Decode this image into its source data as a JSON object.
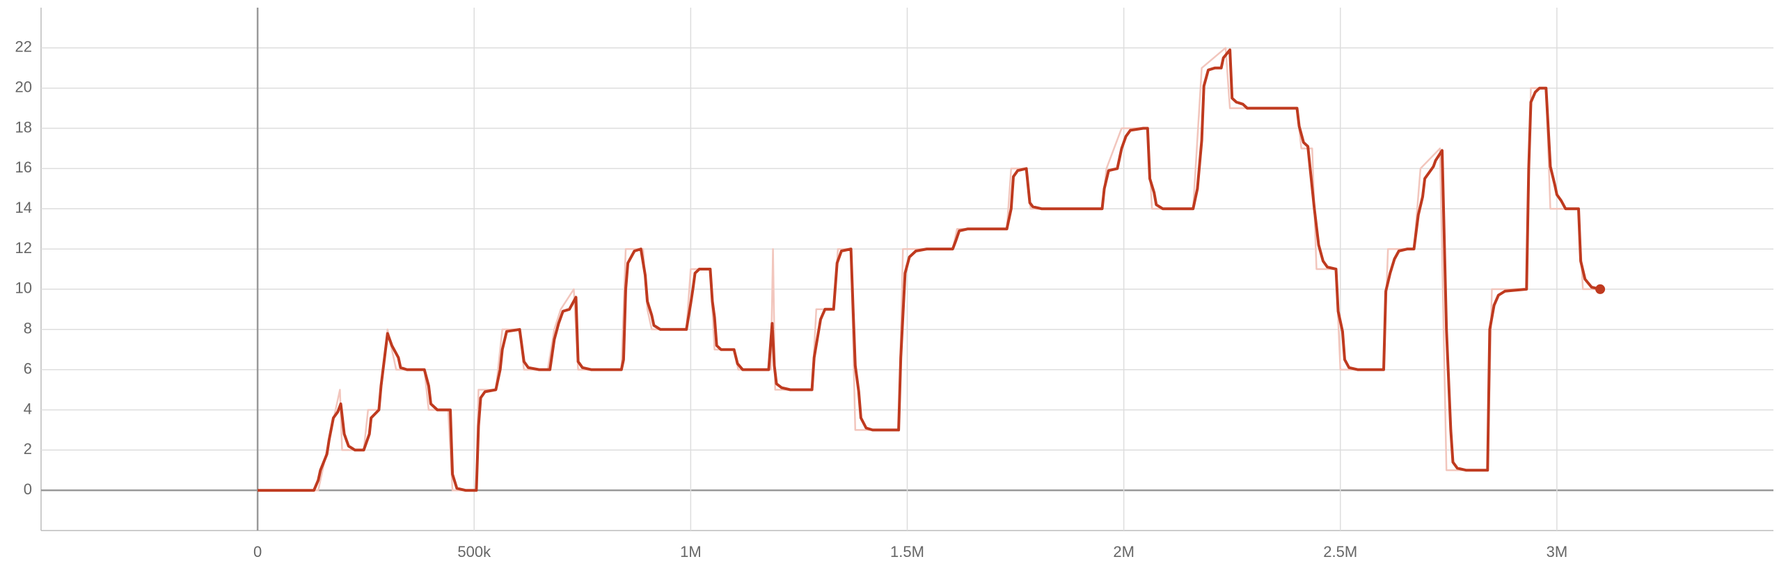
{
  "chart_data": {
    "type": "line",
    "xlim": [
      -500000,
      3500000
    ],
    "xticks": [
      0,
      {
        "value": 500000,
        "label": "500k"
      },
      {
        "value": 1000000,
        "label": "1M"
      },
      {
        "value": 1500000,
        "label": "1.5M"
      },
      {
        "value": 2000000,
        "label": "2M"
      },
      {
        "value": 2500000,
        "label": "2.5M"
      },
      {
        "value": 3000000,
        "label": "3M"
      }
    ],
    "ylim": [
      -2,
      24
    ],
    "yticks": [
      0,
      2,
      4,
      6,
      8,
      10,
      12,
      14,
      16,
      18,
      20,
      22
    ],
    "grid": true,
    "series": [
      {
        "color": "#f2c6bd",
        "x": [
          0,
          140000,
          150000,
          160000,
          170000,
          180000,
          190000,
          195000,
          245000,
          255000,
          280000,
          300000,
          320000,
          385000,
          395000,
          440000,
          450000,
          505000,
          510000,
          550000,
          565000,
          605000,
          615000,
          670000,
          685000,
          700000,
          730000,
          740000,
          840000,
          850000,
          890000,
          900000,
          910000,
          990000,
          1000000,
          1045000,
          1055000,
          1100000,
          1110000,
          1185000,
          1190000,
          1195000,
          1280000,
          1290000,
          1330000,
          1340000,
          1370000,
          1380000,
          1480000,
          1490000,
          1605000,
          1615000,
          1730000,
          1740000,
          1775000,
          1785000,
          1950000,
          1960000,
          1995000,
          2055000,
          2065000,
          2160000,
          2180000,
          2235000,
          2245000,
          2400000,
          2410000,
          2435000,
          2445000,
          2490000,
          2500000,
          2600000,
          2610000,
          2670000,
          2685000,
          2730000,
          2745000,
          2840000,
          2850000,
          2930000,
          2940000,
          2975000,
          2985000,
          3050000,
          3060000,
          3100000
        ],
        "values": [
          0,
          0,
          1,
          2,
          3,
          4,
          5,
          2,
          2,
          4,
          4,
          8,
          6,
          6,
          4,
          4,
          0,
          0,
          5,
          5,
          8,
          8,
          6,
          6,
          8,
          9,
          10,
          6,
          6,
          12,
          12,
          9,
          8,
          8,
          11,
          11,
          7,
          7,
          6,
          6,
          12,
          5,
          5,
          9,
          9,
          12,
          12,
          3,
          3,
          12,
          12,
          13,
          13,
          16,
          16,
          14,
          14,
          16,
          18,
          18,
          14,
          14,
          21,
          22,
          19,
          19,
          17,
          17,
          11,
          11,
          6,
          6,
          12,
          12,
          16,
          17,
          1,
          1,
          10,
          10,
          20,
          20,
          14,
          14,
          10,
          10
        ]
      },
      {
        "color": "#bf3a1f",
        "x": [
          0,
          130000,
          140000,
          145000,
          160000,
          165000,
          175000,
          185000,
          192000,
          200000,
          210000,
          225000,
          245000,
          258000,
          262000,
          280000,
          285000,
          300000,
          310000,
          325000,
          330000,
          345000,
          385000,
          395000,
          400000,
          415000,
          445000,
          450000,
          460000,
          480000,
          505000,
          510000,
          515000,
          525000,
          550000,
          560000,
          565000,
          575000,
          605000,
          615000,
          625000,
          650000,
          675000,
          685000,
          695000,
          705000,
          720000,
          735000,
          740000,
          750000,
          770000,
          840000,
          845000,
          850000,
          855000,
          870000,
          885000,
          895000,
          900000,
          910000,
          915000,
          930000,
          990000,
          1000000,
          1005000,
          1010000,
          1020000,
          1045000,
          1050000,
          1055000,
          1060000,
          1070000,
          1100000,
          1108000,
          1120000,
          1180000,
          1188000,
          1193000,
          1198000,
          1210000,
          1230000,
          1280000,
          1285000,
          1300000,
          1310000,
          1330000,
          1338000,
          1348000,
          1370000,
          1375000,
          1380000,
          1388000,
          1393000,
          1405000,
          1420000,
          1480000,
          1485000,
          1495000,
          1505000,
          1520000,
          1545000,
          1605000,
          1612000,
          1620000,
          1640000,
          1730000,
          1740000,
          1745000,
          1755000,
          1775000,
          1783000,
          1790000,
          1810000,
          1950000,
          1955000,
          1965000,
          1985000,
          1995000,
          2005000,
          2015000,
          2045000,
          2055000,
          2060000,
          2070000,
          2075000,
          2090000,
          2160000,
          2170000,
          2180000,
          2185000,
          2195000,
          2210000,
          2225000,
          2230000,
          2245000,
          2250000,
          2260000,
          2275000,
          2285000,
          2400000,
          2405000,
          2415000,
          2425000,
          2440000,
          2450000,
          2460000,
          2470000,
          2490000,
          2495000,
          2505000,
          2510000,
          2520000,
          2540000,
          2600000,
          2605000,
          2615000,
          2625000,
          2635000,
          2655000,
          2670000,
          2680000,
          2690000,
          2695000,
          2705000,
          2715000,
          2720000,
          2735000,
          2745000,
          2755000,
          2760000,
          2770000,
          2790000,
          2840000,
          2845000,
          2855000,
          2865000,
          2880000,
          2930000,
          2935000,
          2940000,
          2950000,
          2960000,
          2975000,
          2985000,
          2995000,
          3000000,
          3010000,
          3020000,
          3050000,
          3055000,
          3065000,
          3080000,
          3100000
        ],
        "values": [
          0,
          0,
          0.5,
          1,
          1.8,
          2.5,
          3.6,
          3.9,
          4.3,
          2.8,
          2.2,
          2,
          2,
          2.8,
          3.6,
          4,
          5.2,
          7.8,
          7.2,
          6.6,
          6.1,
          6,
          6,
          5.2,
          4.3,
          4,
          4,
          0.8,
          0.1,
          0,
          0,
          3.2,
          4.6,
          4.9,
          5,
          6,
          7,
          7.9,
          8,
          6.4,
          6.1,
          6,
          6,
          7.5,
          8.3,
          8.9,
          9,
          9.6,
          6.4,
          6.1,
          6,
          6,
          6.5,
          10,
          11.3,
          11.9,
          12,
          10.7,
          9.4,
          8.7,
          8.2,
          8,
          8,
          9.3,
          10,
          10.8,
          11,
          11,
          9.4,
          8.6,
          7.2,
          7,
          7,
          6.3,
          6,
          6,
          8.3,
          6.2,
          5.3,
          5.1,
          5,
          5,
          6.6,
          8.5,
          9,
          9,
          11.3,
          11.9,
          12,
          9,
          6.2,
          4.9,
          3.6,
          3.1,
          3,
          3,
          6.6,
          10.8,
          11.6,
          11.9,
          12,
          12,
          12.4,
          12.9,
          13,
          13,
          14,
          15.6,
          15.9,
          16,
          14.3,
          14.1,
          14,
          14,
          15,
          15.9,
          16,
          17,
          17.6,
          17.9,
          18,
          18,
          15.5,
          14.8,
          14.2,
          14,
          14,
          15,
          17.4,
          20.1,
          20.9,
          21,
          21,
          21.5,
          21.9,
          19.5,
          19.3,
          19.2,
          19,
          19,
          18.1,
          17.3,
          17.1,
          14,
          12.2,
          11.4,
          11.1,
          11,
          8.9,
          7.9,
          6.5,
          6.1,
          6,
          6,
          9.9,
          10.8,
          11.5,
          11.9,
          12,
          12,
          13.7,
          14.6,
          15.5,
          15.8,
          16.1,
          16.4,
          16.9,
          8,
          3,
          1.4,
          1.1,
          1,
          1,
          8,
          9.2,
          9.7,
          9.9,
          10,
          16,
          19.3,
          19.8,
          20,
          20,
          16.1,
          15.2,
          14.7,
          14.4,
          14,
          14,
          11.4,
          10.5,
          10.1,
          10
        ]
      }
    ]
  }
}
